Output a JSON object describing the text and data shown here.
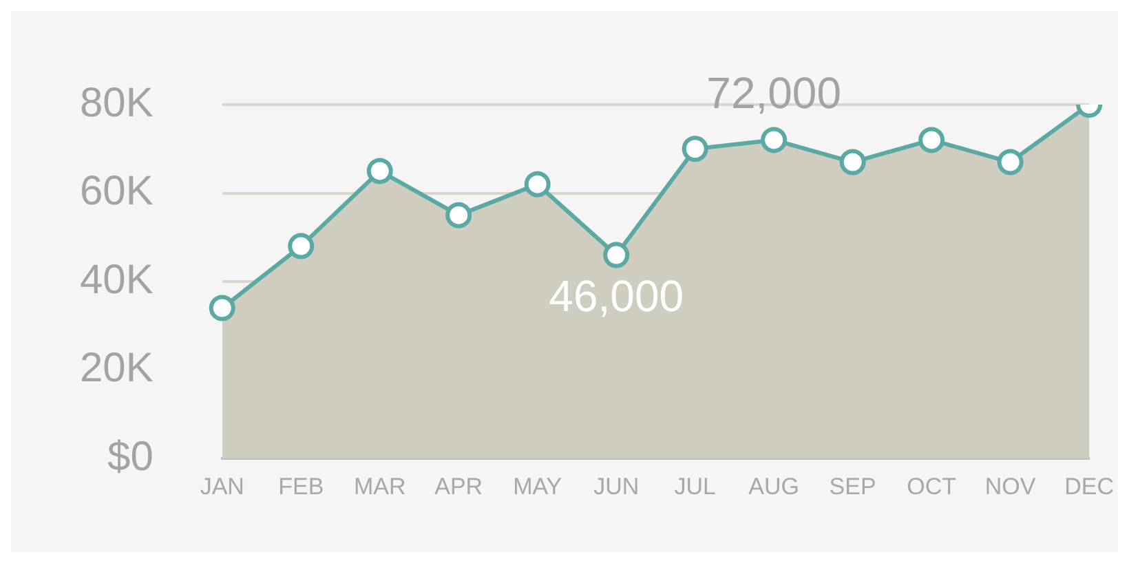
{
  "chart_data": {
    "type": "area",
    "categories": [
      "JAN",
      "FEB",
      "MAR",
      "APR",
      "MAY",
      "JUN",
      "JUL",
      "AUG",
      "SEP",
      "OCT",
      "NOV",
      "DEC"
    ],
    "series": [
      {
        "color": "#5aa9a5",
        "values": [
          34000,
          48000,
          65000,
          55000,
          62000,
          46000,
          70000,
          72000,
          67000,
          72000,
          67000,
          80000
        ],
        "value_labels": [
          null,
          null,
          null,
          null,
          null,
          "46,000",
          null,
          "72,000",
          null,
          null,
          null,
          null
        ]
      }
    ],
    "ylim": [
      0,
      80000
    ],
    "yticks": [
      {
        "value": 0,
        "label": "$0"
      },
      {
        "value": 20000,
        "label": "20K"
      },
      {
        "value": 40000,
        "label": "40K"
      },
      {
        "value": 60000,
        "label": "60K"
      },
      {
        "value": 80000,
        "label": "80K"
      }
    ],
    "grid": "y",
    "marker": "circle",
    "line_style": "solid",
    "legend": false
  }
}
